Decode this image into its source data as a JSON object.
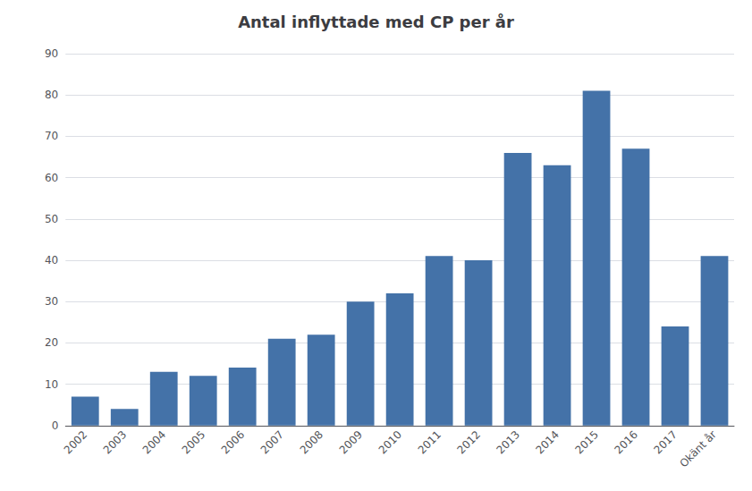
{
  "chart_data": {
    "type": "bar",
    "title": "Antal inflyttade med CP per år",
    "categories": [
      "2002",
      "2003",
      "2004",
      "2005",
      "2006",
      "2007",
      "2008",
      "2009",
      "2010",
      "2011",
      "2012",
      "2013",
      "2014",
      "2015",
      "2016",
      "2017",
      "Okänt år"
    ],
    "values": [
      7,
      4,
      13,
      12,
      14,
      21,
      22,
      30,
      32,
      41,
      40,
      66,
      63,
      81,
      67,
      24,
      41
    ],
    "color": "#4472A8",
    "ylim": [
      0,
      90
    ],
    "yticks": [
      0,
      10,
      20,
      30,
      40,
      50,
      60,
      70,
      80,
      90
    ],
    "grid": true
  }
}
